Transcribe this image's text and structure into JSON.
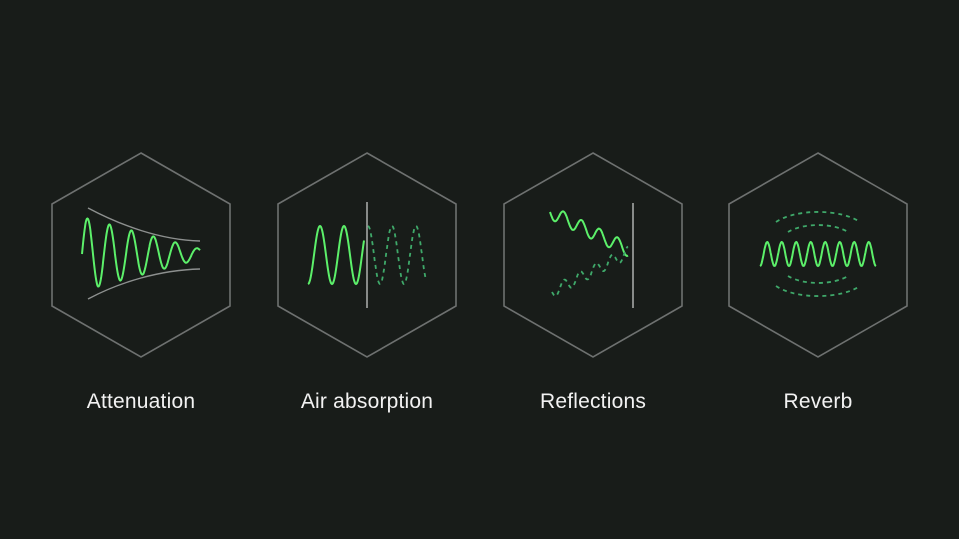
{
  "colors": {
    "background": "#181c19",
    "hexagon_stroke": "#6e7170",
    "wave_green": "#5cf06a",
    "wave_dashed": "#3fa96a",
    "divider": "#b8bbb9",
    "label": "#f2f2f2"
  },
  "items": [
    {
      "label": "Attenuation",
      "icon": "attenuation-wave-icon"
    },
    {
      "label": "Air absorption",
      "icon": "air-absorption-wave-icon"
    },
    {
      "label": "Reflections",
      "icon": "reflections-wave-icon"
    },
    {
      "label": "Reverb",
      "icon": "reverb-wave-icon"
    }
  ]
}
